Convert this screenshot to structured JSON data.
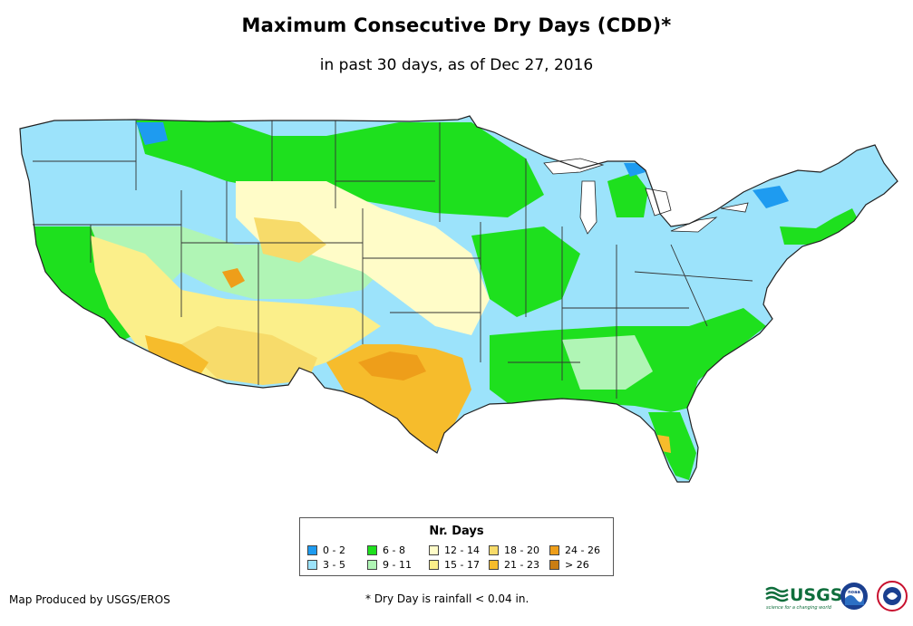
{
  "title": "Maximum Consecutive Dry Days (CDD)*",
  "subtitle": "in past 30 days, as of Dec 27, 2016",
  "legend": {
    "title": "Nr. Days",
    "items": [
      {
        "label": "0 - 2",
        "color": "#1e9bf0"
      },
      {
        "label": "3 - 5",
        "color": "#9ce3fb"
      },
      {
        "label": "6 - 8",
        "color": "#1ee01e"
      },
      {
        "label": "9 - 11",
        "color": "#b0f5b5"
      },
      {
        "label": "12 - 14",
        "color": "#fffcc8"
      },
      {
        "label": "15 - 17",
        "color": "#fbef8a"
      },
      {
        "label": "18 - 20",
        "color": "#f7db6a"
      },
      {
        "label": "21 - 23",
        "color": "#f6bc2c"
      },
      {
        "label": "24 - 26",
        "color": "#ee9e1a"
      },
      {
        "label": "> 26",
        "color": "#c97d12"
      }
    ]
  },
  "credit": "Map Produced by USGS/EROS",
  "footnote": "* Dry Day is rainfall < 0.04 in.",
  "logos": {
    "usgs_text": "USGS",
    "usgs_tagline": "science for a changing world",
    "noaa_text": "noaa"
  }
}
